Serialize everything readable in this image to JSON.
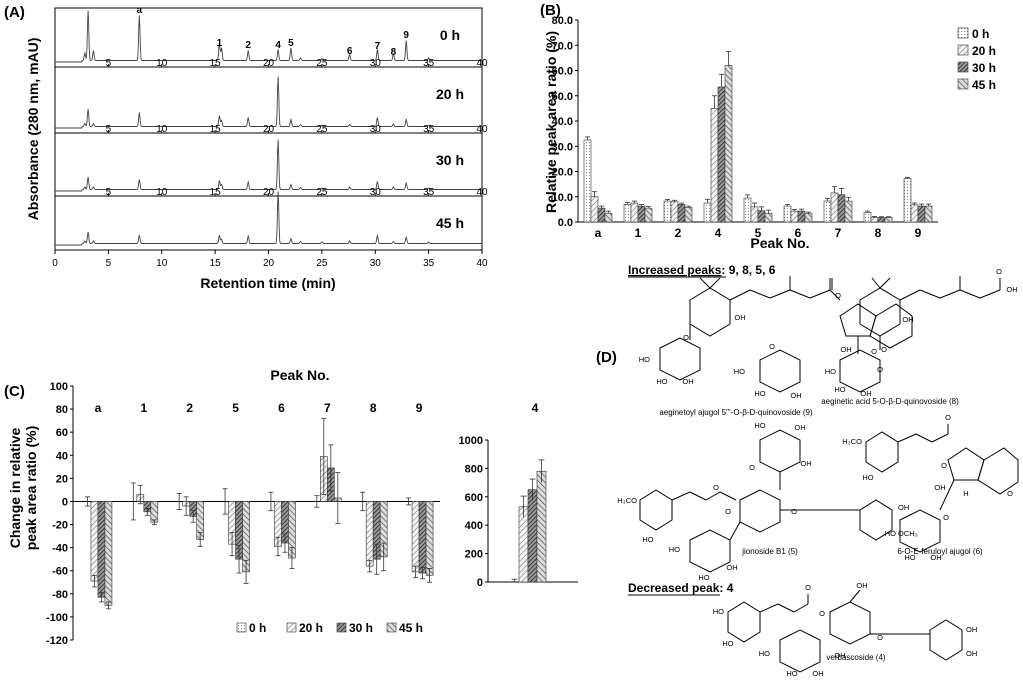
{
  "panels": {
    "A": "(A)",
    "B": "(B)",
    "C": "(C)",
    "D": "(D)"
  },
  "panel_a": {
    "ylabel": "Absorbance (280 nm, mAU)",
    "xlabel": "Retention time (min)",
    "traces": [
      "0 h",
      "20 h",
      "30 h",
      "45 h"
    ],
    "xticks": [
      0,
      5,
      10,
      15,
      20,
      25,
      30,
      35,
      40
    ],
    "inner_xticks": [
      5,
      10,
      15,
      20,
      25,
      30,
      35,
      40
    ],
    "peak_labels": [
      {
        "label": "a",
        "rt": 7.9
      },
      {
        "label": "1",
        "rt": 15.4
      },
      {
        "label": "2",
        "rt": 18.1
      },
      {
        "label": "4",
        "rt": 20.9
      },
      {
        "label": "5",
        "rt": 22.1
      },
      {
        "label": "6",
        "rt": 27.6
      },
      {
        "label": "7",
        "rt": 30.2
      },
      {
        "label": "8",
        "rt": 31.7
      },
      {
        "label": "9",
        "rt": 32.9
      }
    ],
    "peaks_rt": [
      2.8,
      3.1,
      3.6,
      7.9,
      15.4,
      15.6,
      18.1,
      20.9,
      22.1,
      23.0,
      25.0,
      27.6,
      30.2,
      31.7,
      32.9,
      35.0
    ],
    "peak_heights": [
      [
        0.15,
        1.0,
        0.2,
        0.9,
        0.35,
        0.25,
        0.2,
        0.22,
        0.25,
        0.05,
        0.04,
        0.12,
        0.22,
        0.13,
        0.4,
        0.05
      ],
      [
        0.06,
        0.35,
        0.06,
        0.28,
        0.22,
        0.12,
        0.18,
        1.0,
        0.14,
        0.04,
        0.03,
        0.04,
        0.18,
        0.05,
        0.14,
        0.03
      ],
      [
        0.05,
        0.25,
        0.05,
        0.2,
        0.18,
        0.1,
        0.15,
        1.0,
        0.1,
        0.04,
        0.03,
        0.05,
        0.16,
        0.05,
        0.13,
        0.03
      ],
      [
        0.05,
        0.22,
        0.05,
        0.16,
        0.16,
        0.08,
        0.14,
        1.0,
        0.09,
        0.04,
        0.03,
        0.05,
        0.15,
        0.04,
        0.12,
        0.03
      ]
    ]
  },
  "chart_data": [
    {
      "type": "bar",
      "panel": "B",
      "ylabel": "Relative peak area ratio (%)",
      "xlabel": "Peak No.",
      "categories": [
        "a",
        "1",
        "2",
        "4",
        "5",
        "6",
        "7",
        "8",
        "9"
      ],
      "ylim": [
        0,
        80
      ],
      "yticks": [
        "0.0",
        "10.0",
        "20.0",
        "30.0",
        "40.0",
        "50.0",
        "60.0",
        "70.0",
        "80.0"
      ],
      "series": [
        {
          "name": "0 h",
          "values": [
            32.5,
            7.0,
            8.3,
            7.5,
            9.5,
            6.3,
            8.3,
            3.8,
            17.2
          ],
          "errors": [
            1.2,
            0.8,
            0.6,
            1.5,
            1.2,
            0.6,
            1.0,
            0.5,
            0.5
          ]
        },
        {
          "name": "20 h",
          "values": [
            10.0,
            7.5,
            8.0,
            45.0,
            6.0,
            4.3,
            11.5,
            1.8,
            6.8
          ],
          "errors": [
            2.0,
            0.8,
            0.6,
            5.0,
            1.5,
            0.6,
            2.5,
            0.4,
            0.7
          ]
        },
        {
          "name": "30 h",
          "values": [
            5.5,
            6.3,
            7.0,
            53.5,
            4.5,
            4.3,
            10.8,
            1.8,
            6.3
          ],
          "errors": [
            0.8,
            0.6,
            0.5,
            5.0,
            1.5,
            0.8,
            2.5,
            0.3,
            0.8
          ]
        },
        {
          "name": "45 h",
          "values": [
            3.5,
            5.5,
            5.8,
            62.0,
            3.5,
            3.3,
            8.3,
            1.8,
            6.3
          ],
          "errors": [
            0.8,
            0.6,
            0.5,
            5.5,
            1.2,
            0.6,
            1.5,
            0.3,
            0.8
          ]
        }
      ],
      "legend": "right"
    },
    {
      "type": "bar",
      "panel": "C",
      "ylabel": "Change in relative peak area ratio (%)",
      "top_label": "Peak No.",
      "categories": [
        "a",
        "1",
        "2",
        "5",
        "6",
        "7",
        "8",
        "9"
      ],
      "ylim": [
        -120,
        100
      ],
      "yticks": [
        "100",
        "80",
        "60",
        "40",
        "20",
        "0",
        "-20",
        "-40",
        "-60",
        "-80",
        "-100",
        "-120"
      ],
      "series": [
        {
          "name": "0 h",
          "values": [
            0,
            0,
            0,
            0,
            0,
            0,
            0,
            0
          ],
          "errors": [
            4,
            16,
            7,
            11,
            8,
            5,
            8,
            3
          ]
        },
        {
          "name": "20 h",
          "values": [
            -69,
            6,
            -4,
            -37,
            -39,
            39,
            -56,
            -61
          ],
          "errors": [
            5,
            8,
            8,
            10,
            8,
            33,
            5,
            5
          ]
        },
        {
          "name": "30 h",
          "values": [
            -83,
            -9,
            -13,
            -50,
            -36,
            29,
            -50,
            -62
          ],
          "errors": [
            4,
            3,
            5,
            12,
            8,
            20,
            13,
            5
          ]
        },
        {
          "name": "45 h",
          "values": [
            -90,
            -18,
            -33,
            -61,
            -49,
            3,
            -48,
            -64
          ],
          "errors": [
            3,
            2,
            6,
            10,
            9,
            22,
            12,
            6
          ]
        }
      ],
      "legend": "bottom-right"
    },
    {
      "type": "bar",
      "panel": "C-inset",
      "categories": [
        "4"
      ],
      "ylim": [
        0,
        1000
      ],
      "yticks": [
        "1000",
        "800",
        "600",
        "400",
        "200",
        "0"
      ],
      "series": [
        {
          "name": "0 h",
          "values": [
            0
          ],
          "errors": [
            20
          ]
        },
        {
          "name": "20 h",
          "values": [
            530
          ],
          "errors": [
            75
          ]
        },
        {
          "name": "30 h",
          "values": [
            650
          ],
          "errors": [
            75
          ]
        },
        {
          "name": "45 h",
          "values": [
            780
          ],
          "errors": [
            80
          ]
        }
      ]
    }
  ],
  "panel_d": {
    "increased_heading": "Increased peaks",
    "increased_list": ": 9, 8, 5, 6",
    "decreased_heading": "Decreased peak",
    "decreased_list": ": 4",
    "compounds": [
      "aeginetoyl ajugol 5'''-O-β-D-quinovoside (9)",
      "aeginetic acid 5-O-β-D-quinovoside (8)",
      "jionoside B1 (5)",
      "6-O-E-feruloyl ajugol (6)",
      "verbascoside (4)"
    ],
    "atoms": {
      "oh": "OH",
      "ho": "HO",
      "o": "O",
      "h": "H",
      "h3co": "H₃CO",
      "och3": "OCH₃"
    }
  },
  "colors": {
    "ink": "#000000",
    "bar_edge": "#333333",
    "fill_0h": "#f0f0f0",
    "fill_20h": "#e0e0e0",
    "fill_30h": "#555555",
    "fill_45h": "#b0b0b0"
  }
}
